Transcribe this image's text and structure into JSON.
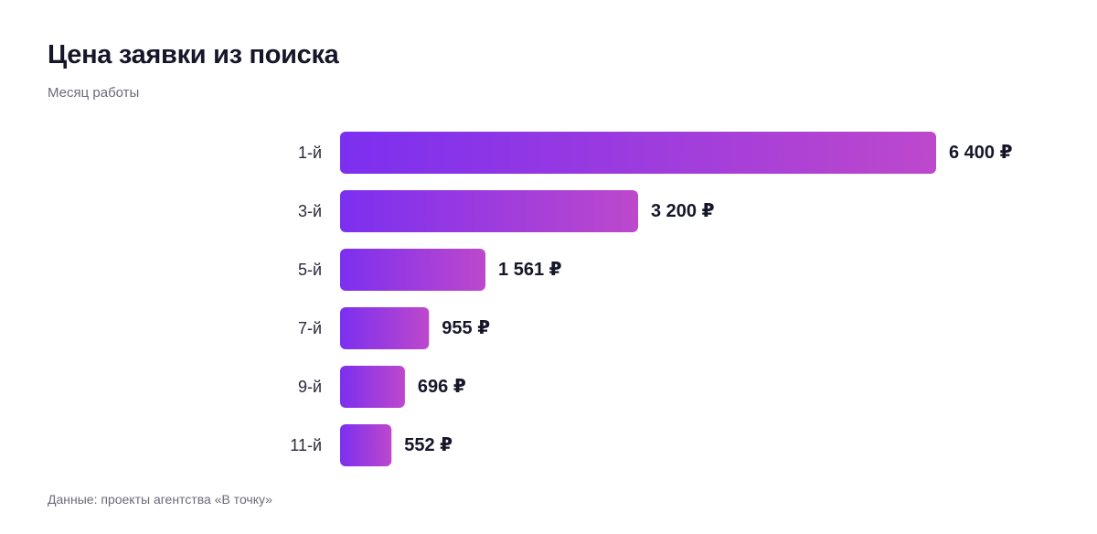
{
  "header": {
    "title": "Цена заявки из поиска",
    "subtitle": "Месяц работы"
  },
  "footer": {
    "source": "Данные: проекты агентства «В точку»"
  },
  "colors": {
    "bar_start": "#7c2ff0",
    "bar_end": "#bd48cc"
  },
  "chart_data": {
    "type": "bar",
    "orientation": "horizontal",
    "categories": [
      "1-й",
      "3-й",
      "5-й",
      "7-й",
      "9-й",
      "11-й"
    ],
    "values": [
      6400,
      3200,
      1561,
      955,
      696,
      552
    ],
    "value_labels": [
      "6 400 ₽",
      "3 200 ₽",
      "1 561 ₽",
      "955 ₽",
      "696 ₽",
      "552 ₽"
    ],
    "title": "Цена заявки из поиска",
    "subtitle": "Месяц работы",
    "grid": false,
    "legend": "none"
  }
}
